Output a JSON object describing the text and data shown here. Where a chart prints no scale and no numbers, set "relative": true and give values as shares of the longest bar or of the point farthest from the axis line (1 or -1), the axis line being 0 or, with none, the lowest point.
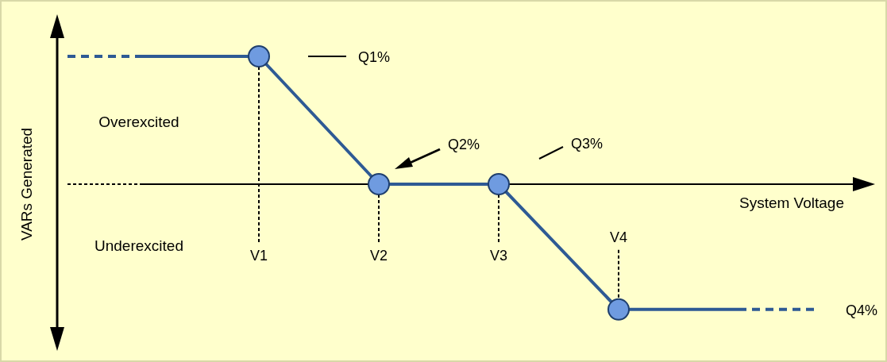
{
  "chart_data": {
    "type": "line",
    "relative": true,
    "xlabel": "System Voltage",
    "categories": [
      null,
      "V1",
      "V2",
      "V3",
      "V4",
      null
    ],
    "series": [
      {
        "color": "#2e5a94",
        "values": [
          1,
          1,
          0,
          0,
          -0.98,
          -0.98
        ],
        "marker": "none"
      },
      {
        "type": "scatter",
        "color": "#6f9be0",
        "x": [
          "V1",
          "V2",
          "V3",
          "V4"
        ],
        "values": [
          1,
          0,
          0,
          -0.98
        ],
        "marker": "circle"
      }
    ],
    "line_style": "solid",
    "ref_lines": [
      {
        "axis": "x",
        "value": "V1",
        "color": "#000000",
        "line_style": "dotted"
      },
      {
        "axis": "x",
        "value": "V2",
        "color": "#000000",
        "line_style": "dotted"
      },
      {
        "axis": "x",
        "value": "V3",
        "color": "#000000",
        "line_style": "dotted"
      },
      {
        "axis": "x",
        "value": "V4",
        "color": "#000000",
        "line_style": "dotted"
      }
    ],
    "annotations": [
      "Q1%",
      "Q2%",
      "Q3%",
      "Q4%",
      "Overexcited",
      "Underexcited",
      "VARs Generated"
    ]
  }
}
